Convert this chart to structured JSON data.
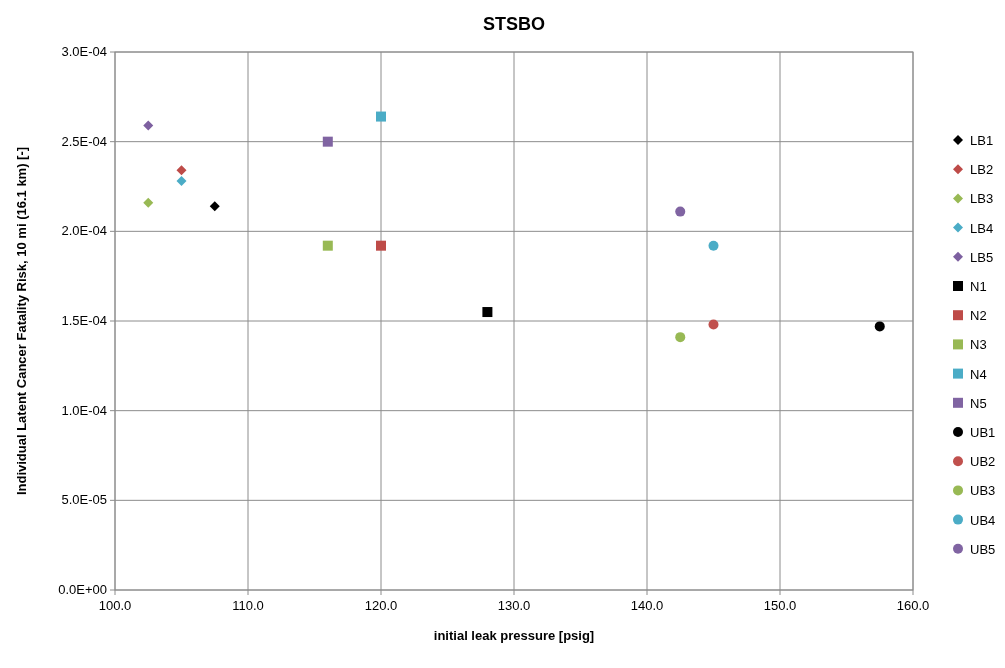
{
  "chart_data": {
    "type": "scatter",
    "title": "STSBO",
    "xlabel": "initial leak pressure [psig]",
    "ylabel": "Individual Latent Cancer Fatality Risk, 10 mi (16.1 km) [-]",
    "xlim": [
      100,
      160
    ],
    "xticks": [
      {
        "value": 100,
        "label": "100.0"
      },
      {
        "value": 110,
        "label": "110.0"
      },
      {
        "value": 120,
        "label": "120.0"
      },
      {
        "value": 130,
        "label": "130.0"
      },
      {
        "value": 140,
        "label": "140.0"
      },
      {
        "value": 150,
        "label": "150.0"
      },
      {
        "value": 160,
        "label": "160.0"
      }
    ],
    "ylim": [
      0,
      0.0003
    ],
    "yticks": [
      {
        "value": 0,
        "label": "0.0E+00"
      },
      {
        "value": 5e-05,
        "label": "5.0E-05"
      },
      {
        "value": 0.0001,
        "label": "1.0E-04"
      },
      {
        "value": 0.00015,
        "label": "1.5E-04"
      },
      {
        "value": 0.0002,
        "label": "2.0E-04"
      },
      {
        "value": 0.00025,
        "label": "2.5E-04"
      },
      {
        "value": 0.0003,
        "label": "3.0E-04"
      }
    ],
    "grid": true,
    "legend": "right",
    "series": [
      {
        "name": "LB1",
        "color": "#000000",
        "marker": "diamond",
        "x": [
          107.5
        ],
        "values": [
          0.000214
        ]
      },
      {
        "name": "LB2",
        "color": "#be4b48",
        "marker": "diamond",
        "x": [
          105
        ],
        "values": [
          0.000234
        ]
      },
      {
        "name": "LB3",
        "color": "#98b954",
        "marker": "diamond",
        "x": [
          102.5
        ],
        "values": [
          0.000216
        ]
      },
      {
        "name": "LB4",
        "color": "#4bacc6",
        "marker": "diamond",
        "x": [
          105
        ],
        "values": [
          0.000228
        ]
      },
      {
        "name": "LB5",
        "color": "#7d60a0",
        "marker": "diamond",
        "x": [
          102.5
        ],
        "values": [
          0.000259
        ]
      },
      {
        "name": "N1",
        "color": "#000000",
        "marker": "square",
        "x": [
          128
        ],
        "values": [
          0.000155
        ]
      },
      {
        "name": "N2",
        "color": "#be4b48",
        "marker": "square",
        "x": [
          120
        ],
        "values": [
          0.000192
        ]
      },
      {
        "name": "N3",
        "color": "#98b954",
        "marker": "square",
        "x": [
          116
        ],
        "values": [
          0.000192
        ]
      },
      {
        "name": "N4",
        "color": "#4bacc6",
        "marker": "square",
        "x": [
          120
        ],
        "values": [
          0.000264
        ]
      },
      {
        "name": "N5",
        "color": "#8064a2",
        "marker": "square",
        "x": [
          116
        ],
        "values": [
          0.00025
        ]
      },
      {
        "name": "UB1",
        "color": "#000000",
        "marker": "circle",
        "x": [
          157.5
        ],
        "values": [
          0.000147
        ]
      },
      {
        "name": "UB2",
        "color": "#c0504d",
        "marker": "circle",
        "x": [
          145
        ],
        "values": [
          0.000148
        ]
      },
      {
        "name": "UB3",
        "color": "#98b954",
        "marker": "circle",
        "x": [
          142.5
        ],
        "values": [
          0.000141
        ]
      },
      {
        "name": "UB4",
        "color": "#4bacc6",
        "marker": "circle",
        "x": [
          145
        ],
        "values": [
          0.000192
        ]
      },
      {
        "name": "UB5",
        "color": "#8064a2",
        "marker": "circle",
        "x": [
          142.5
        ],
        "values": [
          0.000211
        ]
      }
    ]
  }
}
